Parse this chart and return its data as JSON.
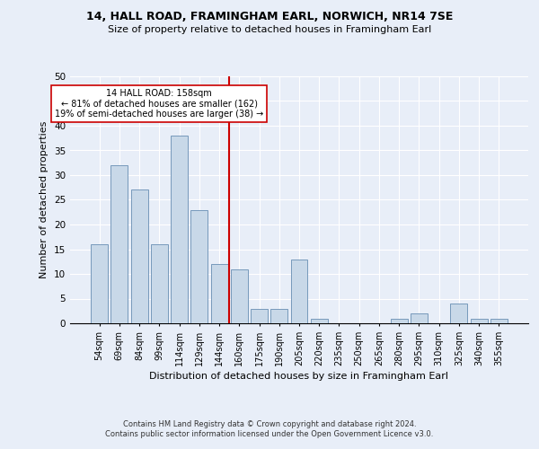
{
  "title1": "14, HALL ROAD, FRAMINGHAM EARL, NORWICH, NR14 7SE",
  "title2": "Size of property relative to detached houses in Framingham Earl",
  "xlabel": "Distribution of detached houses by size in Framingham Earl",
  "ylabel": "Number of detached properties",
  "footnote1": "Contains HM Land Registry data © Crown copyright and database right 2024.",
  "footnote2": "Contains public sector information licensed under the Open Government Licence v3.0.",
  "categories": [
    "54sqm",
    "69sqm",
    "84sqm",
    "99sqm",
    "114sqm",
    "129sqm",
    "144sqm",
    "160sqm",
    "175sqm",
    "190sqm",
    "205sqm",
    "220sqm",
    "235sqm",
    "250sqm",
    "265sqm",
    "280sqm",
    "295sqm",
    "310sqm",
    "325sqm",
    "340sqm",
    "355sqm"
  ],
  "values": [
    16,
    32,
    27,
    16,
    38,
    23,
    12,
    11,
    3,
    3,
    13,
    1,
    0,
    0,
    0,
    1,
    2,
    0,
    4,
    1,
    1
  ],
  "bar_color": "#c8d8e8",
  "bar_edge_color": "#7799bb",
  "vline_color": "#cc0000",
  "background_color": "#e8eef8",
  "grid_color": "#ffffff",
  "annotation_title": "14 HALL ROAD: 158sqm",
  "annotation_line2": "← 81% of detached houses are smaller (162)",
  "annotation_line3": "19% of semi-detached houses are larger (38) →",
  "ylim": [
    0,
    50
  ],
  "vline_bin": 7
}
